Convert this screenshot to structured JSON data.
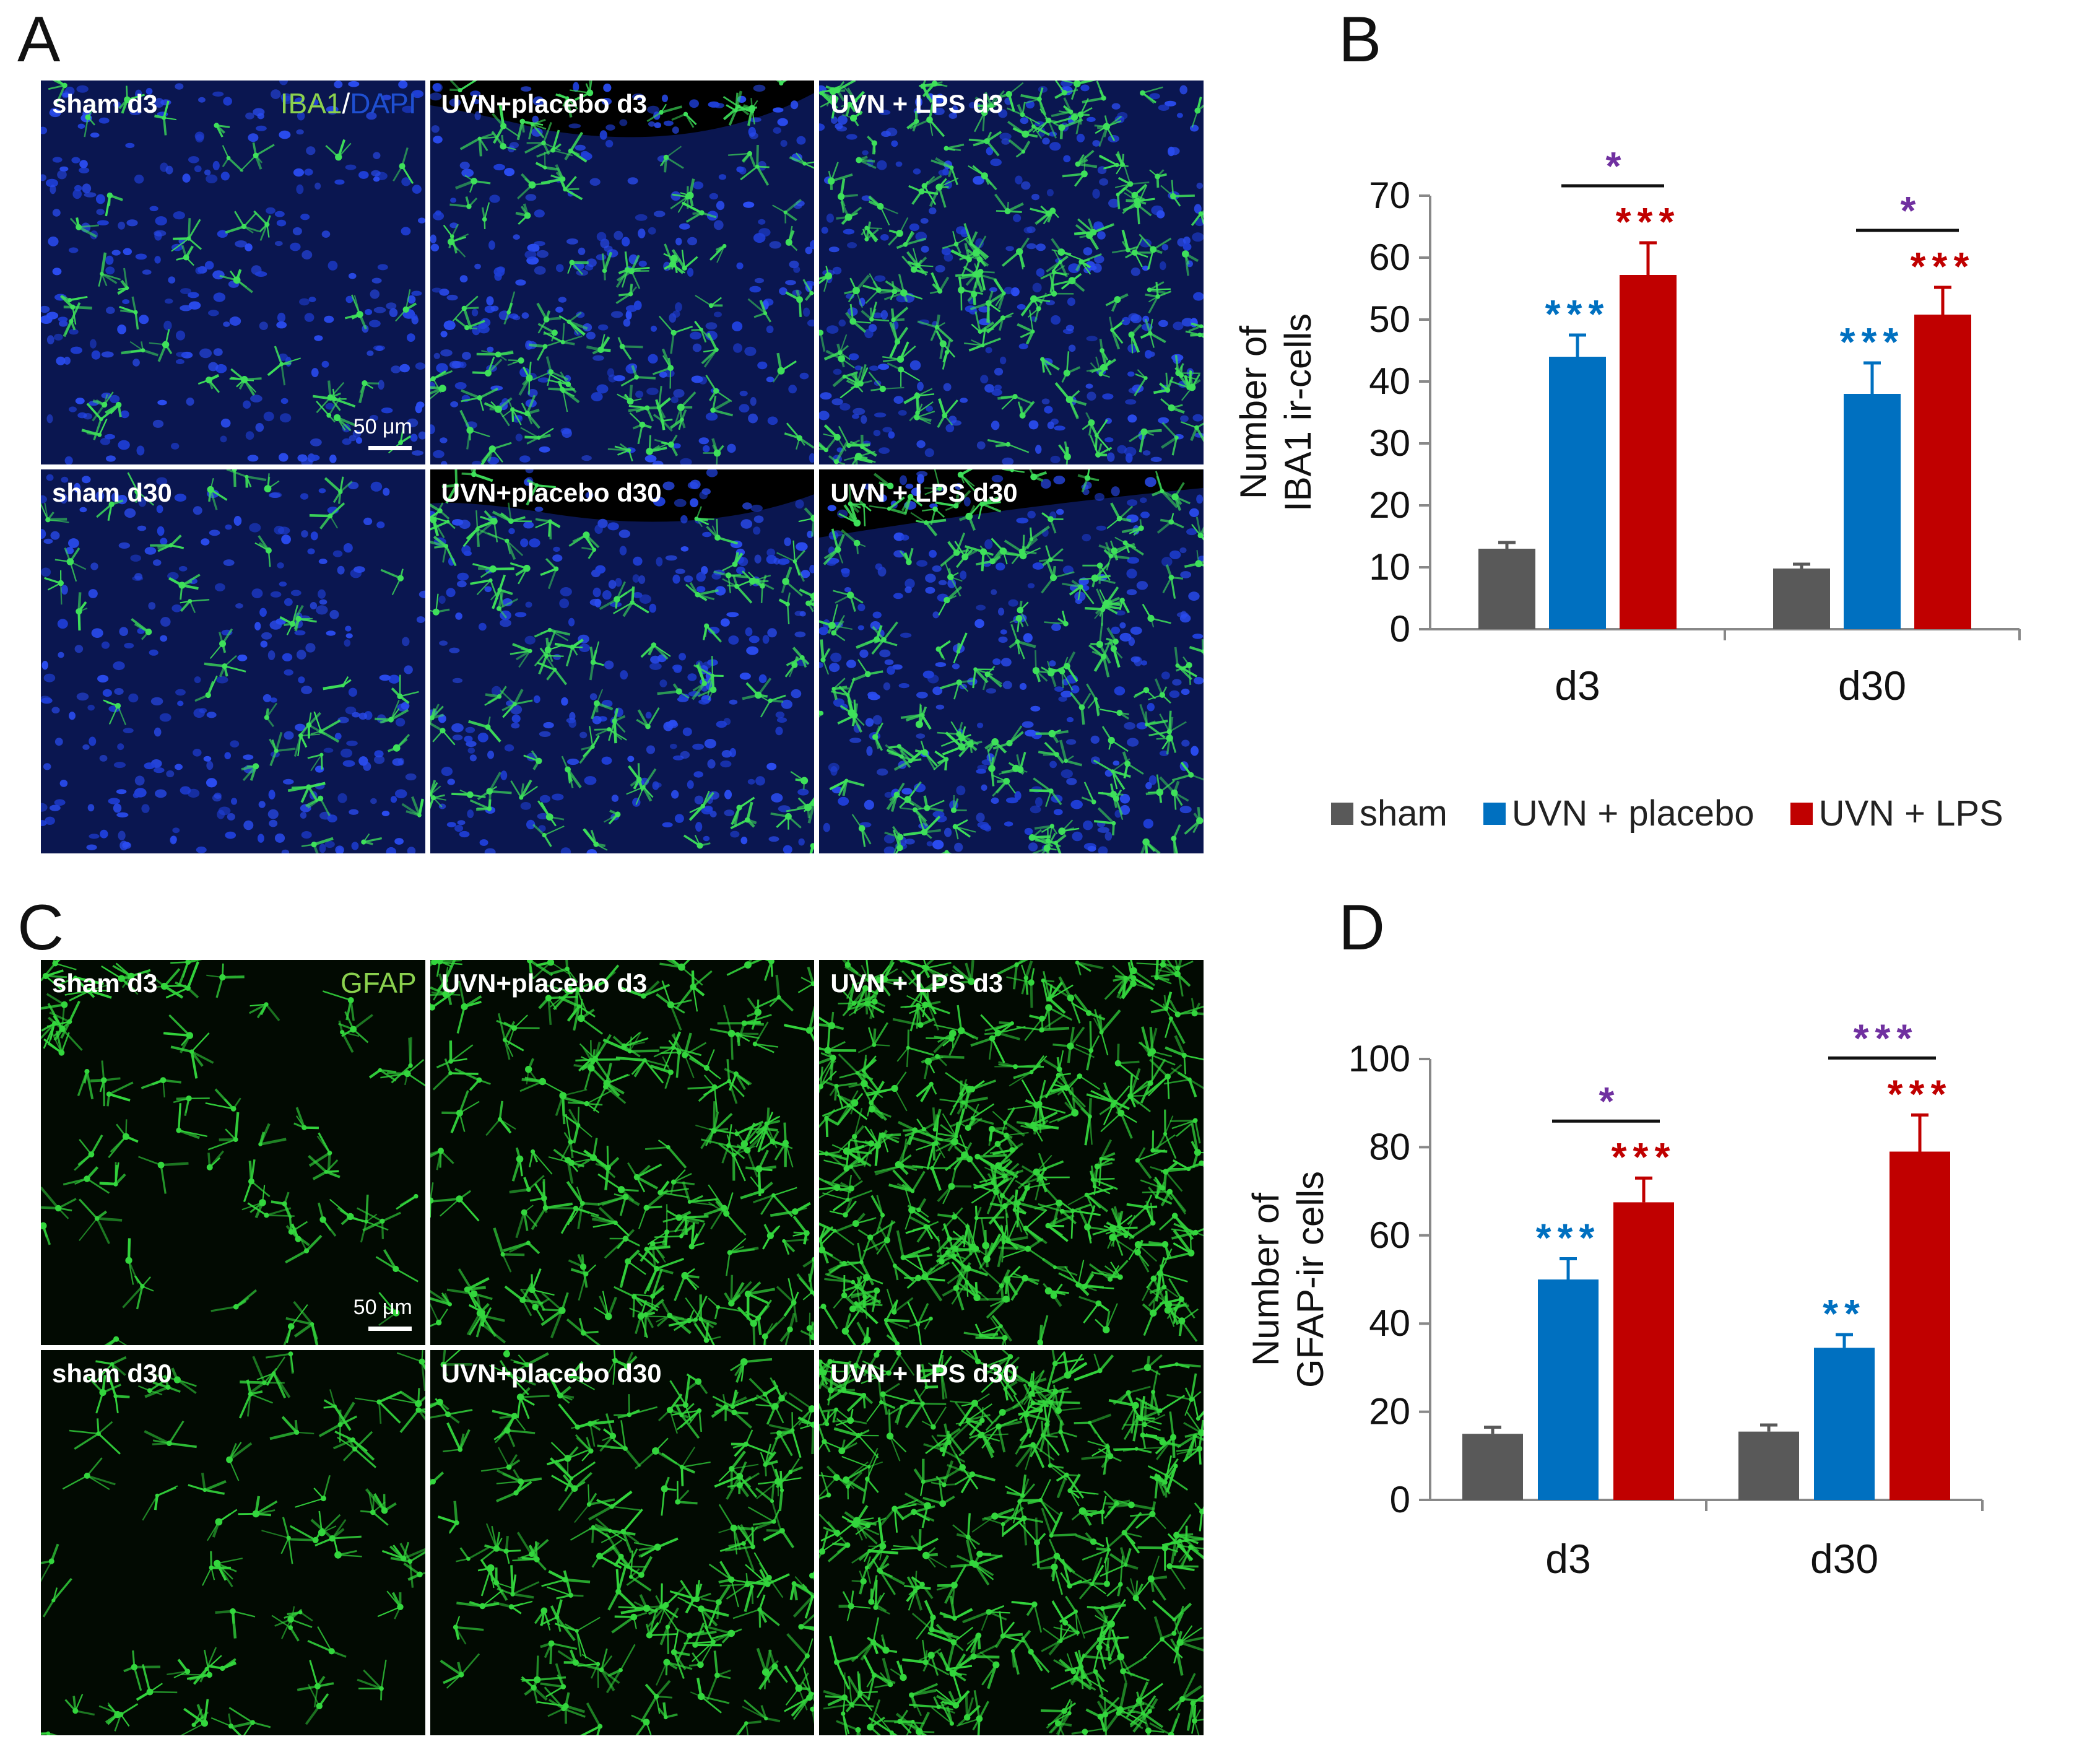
{
  "panels": {
    "A": {
      "letter": "A",
      "stain": {
        "green": "IBA1",
        "sep": "/",
        "blue": "DAPI"
      },
      "scalebar": "50 μm",
      "tiles": [
        [
          "sham d3",
          "UVN+placebo d3",
          "UVN + LPS d3"
        ],
        [
          "sham d30",
          "UVN+placebo d30",
          "UVN + LPS d30"
        ]
      ]
    },
    "C": {
      "letter": "C",
      "stain": {
        "green": "GFAP"
      },
      "scalebar": "50 μm",
      "tiles": [
        [
          "sham d3",
          "UVN+placebo d3",
          "UVN + LPS d3"
        ],
        [
          "sham d30",
          "UVN+placebo d30",
          "UVN + LPS d30"
        ]
      ]
    },
    "B": {
      "letter": "B"
    },
    "D": {
      "letter": "D"
    }
  },
  "colors": {
    "sham": "#595959",
    "placebo": "#0070c0",
    "lps": "#c00000",
    "purple_star": "#7030a0",
    "iba1_green": "#8bd14e",
    "dapi_blue": "#1f4fd1",
    "gfap_green": "#8bd14e"
  },
  "chart_data": [
    {
      "id": "B",
      "type": "bar",
      "categories": [
        "d3",
        "d30"
      ],
      "series": [
        {
          "name": "sham",
          "values": [
            13,
            9.8
          ],
          "errors": [
            1.0,
            0.7
          ]
        },
        {
          "name": "UVN + placebo",
          "values": [
            44,
            38
          ],
          "errors": [
            3.5,
            5.0
          ]
        },
        {
          "name": "UVN + LPS",
          "values": [
            57.2,
            50.8
          ],
          "errors": [
            5.2,
            4.4
          ]
        }
      ],
      "ylabel": [
        "Number of",
        "IBA1 ir-cells"
      ],
      "xlabel": "",
      "ylim": [
        0,
        70
      ],
      "yticks": [
        0,
        10,
        20,
        30,
        40,
        50,
        60,
        70
      ],
      "significance": {
        "vs_sham": {
          "UVN + placebo": [
            "***",
            "***"
          ],
          "UVN + LPS": [
            "***",
            "***"
          ]
        },
        "lps_vs_placebo": [
          "*",
          "*"
        ]
      },
      "grid": false,
      "legend": "bottom"
    },
    {
      "id": "D",
      "type": "bar",
      "categories": [
        "d3",
        "d30"
      ],
      "series": [
        {
          "name": "sham",
          "values": [
            15,
            15.5
          ],
          "errors": [
            1.5,
            1.5
          ]
        },
        {
          "name": "UVN + placebo",
          "values": [
            50,
            34.5
          ],
          "errors": [
            4.7,
            3.0
          ]
        },
        {
          "name": "UVN + LPS",
          "values": [
            67.5,
            79
          ],
          "errors": [
            5.5,
            8.3
          ]
        }
      ],
      "ylabel": [
        "Number of",
        "GFAP-ir cells"
      ],
      "xlabel": "",
      "ylim": [
        0,
        100
      ],
      "yticks": [
        0,
        20,
        40,
        60,
        80,
        100
      ],
      "significance": {
        "vs_sham": {
          "UVN + placebo": [
            "***",
            "**"
          ],
          "UVN + LPS": [
            "***",
            "***"
          ]
        },
        "lps_vs_placebo": [
          "*",
          "***"
        ]
      },
      "grid": false,
      "legend": "none"
    }
  ]
}
